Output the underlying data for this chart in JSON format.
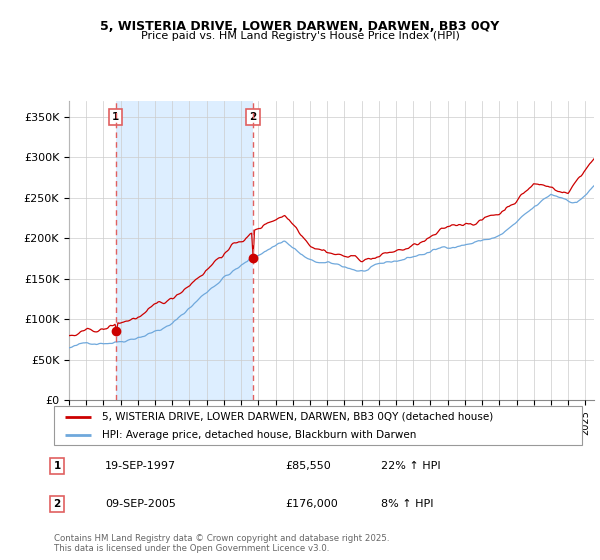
{
  "title": "5, WISTERIA DRIVE, LOWER DARWEN, DARWEN, BB3 0QY",
  "subtitle": "Price paid vs. HM Land Registry's House Price Index (HPI)",
  "legend_line1": "5, WISTERIA DRIVE, LOWER DARWEN, DARWEN, BB3 0QY (detached house)",
  "legend_line2": "HPI: Average price, detached house, Blackburn with Darwen",
  "marker1_label": "1",
  "marker1_date": "19-SEP-1997",
  "marker1_price": "£85,550",
  "marker1_hpi": "22% ↑ HPI",
  "marker2_label": "2",
  "marker2_date": "09-SEP-2005",
  "marker2_price": "£176,000",
  "marker2_hpi": "8% ↑ HPI",
  "footer": "Contains HM Land Registry data © Crown copyright and database right 2025.\nThis data is licensed under the Open Government Licence v3.0.",
  "hpi_color": "#6fa8dc",
  "price_color": "#cc0000",
  "dashed_color": "#e06060",
  "shade_color": "#ddeeff",
  "ylim": [
    0,
    370000
  ],
  "yticks": [
    0,
    50000,
    100000,
    150000,
    200000,
    250000,
    300000,
    350000
  ],
  "ytick_labels": [
    "£0",
    "£50K",
    "£100K",
    "£150K",
    "£200K",
    "£250K",
    "£300K",
    "£350K"
  ],
  "xstart_year": 1995,
  "xend_year": 2025,
  "sale1_year": 1997.72,
  "sale1_price": 85550,
  "sale2_year": 2005.69,
  "sale2_price": 176000,
  "noise_seed": 42
}
